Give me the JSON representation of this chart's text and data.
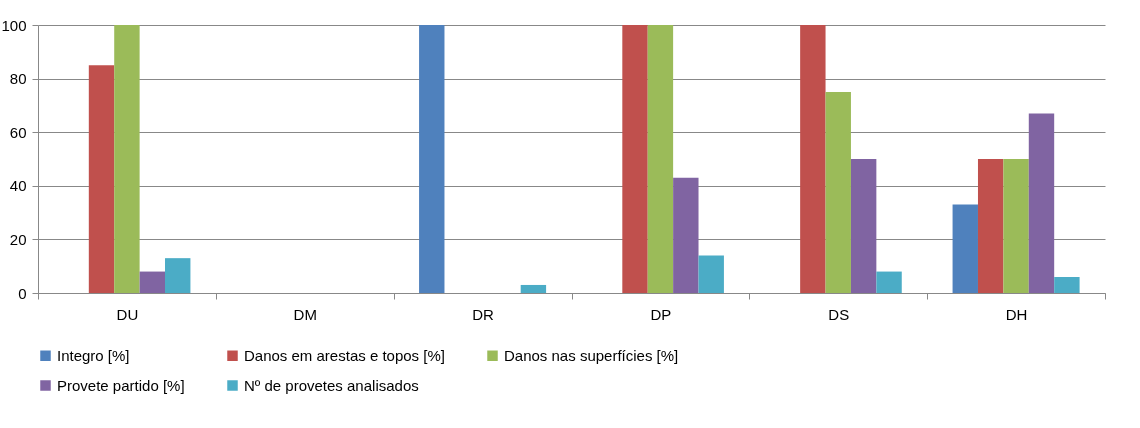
{
  "chart_data": {
    "type": "bar",
    "categories": [
      "DU",
      "DM",
      "DR",
      "DP",
      "DS",
      "DH"
    ],
    "series": [
      {
        "name": "Integro [%]",
        "color": "#4f81bd",
        "values": [
          null,
          null,
          100,
          null,
          null,
          33
        ]
      },
      {
        "name": "Danos em arestas e topos [%]",
        "color": "#c0504d",
        "values": [
          85,
          null,
          null,
          100,
          100,
          50
        ]
      },
      {
        "name": "Danos nas superfícies [%]",
        "color": "#9bbb59",
        "values": [
          100,
          null,
          null,
          100,
          75,
          50
        ]
      },
      {
        "name": "Provete partido [%]",
        "color": "#8064a2",
        "values": [
          8,
          null,
          null,
          43,
          50,
          67
        ]
      },
      {
        "name": "Nº de provetes analisados",
        "color": "#4bacc6",
        "values": [
          13,
          null,
          3,
          14,
          8,
          6
        ]
      }
    ],
    "ylim": [
      0,
      100
    ],
    "yticks": [
      0,
      20,
      40,
      60,
      80,
      100
    ],
    "grid": "y",
    "legend": "bottom"
  }
}
